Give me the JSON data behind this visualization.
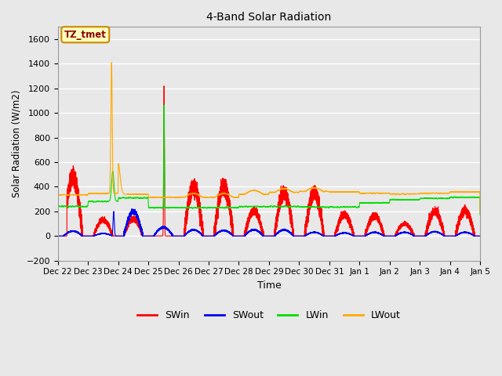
{
  "title": "4-Band Solar Radiation",
  "xlabel": "Time",
  "ylabel": "Solar Radiation (W/m2)",
  "ylim": [
    -200,
    1700
  ],
  "yticks": [
    -200,
    0,
    200,
    400,
    600,
    800,
    1000,
    1200,
    1400,
    1600
  ],
  "fig_bg_color": "#e8e8e8",
  "plot_bg_color": "#e8e8e8",
  "grid_color": "#ffffff",
  "colors": {
    "SWin": "#ff0000",
    "SWout": "#0000ee",
    "LWin": "#00dd00",
    "LWout": "#ffaa00"
  },
  "annotation_text": "TZ_tmet",
  "tick_labels": [
    "Dec 22",
    "Dec 23",
    "Dec 24",
    "Dec 25",
    "Dec 26",
    "Dec 27",
    "Dec 28",
    "Dec 29",
    "Dec 30",
    "Dec 31",
    "Jan 1",
    "Jan 2",
    "Jan 3",
    "Jan 4",
    "Jan 5"
  ],
  "line_width": 0.8,
  "figsize": [
    6.4,
    4.8
  ],
  "dpi": 100
}
